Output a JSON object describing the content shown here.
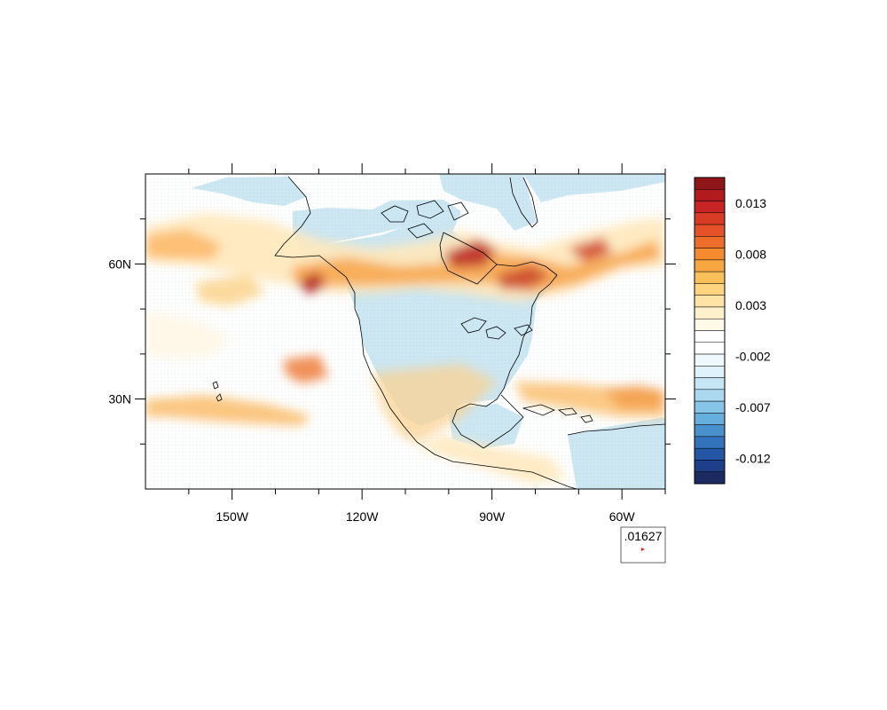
{
  "map": {
    "projection": "cylindrical-equidistant",
    "lon_range": [
      -170,
      -50
    ],
    "lat_range": [
      10,
      80
    ],
    "x_ticks": [
      {
        "lon": -150,
        "label": "150W"
      },
      {
        "lon": -120,
        "label": "120W"
      },
      {
        "lon": -90,
        "label": "90W"
      },
      {
        "lon": -60,
        "label": "60W"
      }
    ],
    "y_ticks": [
      {
        "lat": 60,
        "label": "60N"
      },
      {
        "lat": 30,
        "label": "30N"
      }
    ],
    "field": "vector-magnitude shading over North America",
    "ocean_color": "#cce6f2",
    "coastline_color": "#000000"
  },
  "colorbar": {
    "range": [
      -0.0145,
      0.0155
    ],
    "colors": [
      "#1c2a61",
      "#1e3e8a",
      "#2456a4",
      "#3373bb",
      "#4a90cc",
      "#66aedd",
      "#86c5e8",
      "#a9d8ef",
      "#c6e6f5",
      "#dff1fa",
      "#eef8fd",
      "#ffffff",
      "#ffffff",
      "#fff9e8",
      "#fff0cc",
      "#ffe3a6",
      "#fed47f",
      "#fbbf5a",
      "#f8a640",
      "#f58b2e",
      "#ef6d2a",
      "#e55128",
      "#d93a26",
      "#c72525",
      "#b11b1e",
      "#8f1519"
    ],
    "labels": [
      {
        "value": 0.013,
        "text": "0.013"
      },
      {
        "value": 0.008,
        "text": "0.008"
      },
      {
        "value": 0.003,
        "text": "0.003"
      },
      {
        "value": -0.002,
        "text": "-0.002"
      },
      {
        "value": -0.007,
        "text": "-0.007"
      },
      {
        "value": -0.012,
        "text": "-0.012"
      }
    ]
  },
  "reference_vector": {
    "magnitude_label": ".01627",
    "arrow_color": "#d62a1f"
  }
}
